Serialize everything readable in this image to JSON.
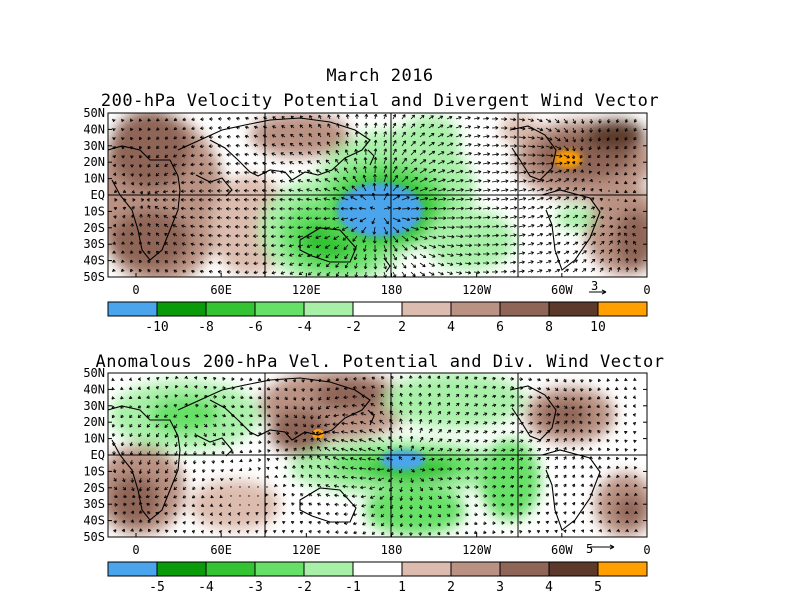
{
  "figure_title": "March 2016",
  "panels": [
    {
      "id": "total",
      "title": "200-hPa Velocity Potential and Divergent Wind Vector",
      "lat_labels": [
        "50N",
        "40N",
        "30N",
        "20N",
        "10N",
        "EQ",
        "10S",
        "20S",
        "30S",
        "40S",
        "50S"
      ],
      "lon_labels": [
        "0",
        "60E",
        "120E",
        "180",
        "120W",
        "60W",
        "0"
      ],
      "vector_ref": "3",
      "colorbar": {
        "colors": [
          "#4ba5ec",
          "#0a9b0a",
          "#33c333",
          "#66e066",
          "#a8f0a8",
          "#ffffff",
          "#dcbcae",
          "#ba9283",
          "#8e6556",
          "#5b3a2c",
          "#ff9f00"
        ],
        "labels": [
          "-10",
          "-8",
          "-6",
          "-4",
          "-2",
          "2",
          "4",
          "6",
          "8",
          "10"
        ]
      }
    },
    {
      "id": "anomaly",
      "title": "Anomalous 200-hPa Vel. Potential and Div. Wind Vector",
      "lat_labels": [
        "50N",
        "40N",
        "30N",
        "20N",
        "10N",
        "EQ",
        "10S",
        "20S",
        "30S",
        "40S",
        "50S"
      ],
      "lon_labels": [
        "0",
        "60E",
        "120E",
        "180",
        "120W",
        "60W",
        "0"
      ],
      "vector_ref": "5",
      "colorbar": {
        "colors": [
          "#4ba5ec",
          "#0a9b0a",
          "#33c333",
          "#66e066",
          "#a8f0a8",
          "#ffffff",
          "#dcbcae",
          "#ba9283",
          "#8e6556",
          "#5b3a2c",
          "#ff9f00"
        ],
        "labels": [
          "-5",
          "-4",
          "-3",
          "-2",
          "-1",
          "1",
          "2",
          "3",
          "4",
          "5"
        ]
      }
    }
  ],
  "colors": {
    "neg_strong": "#4ba5ec",
    "neg_green_dark": "#0a9b0a",
    "neg_green": "#33c333",
    "neg_green_light": "#66e066",
    "neg_green_pale": "#a8f0a8",
    "pos_light": "#dcbcae",
    "pos_mid": "#ba9283",
    "pos_dark": "#8e6556",
    "pos_darker": "#5b3a2c",
    "pos_max": "#ff9f00"
  }
}
